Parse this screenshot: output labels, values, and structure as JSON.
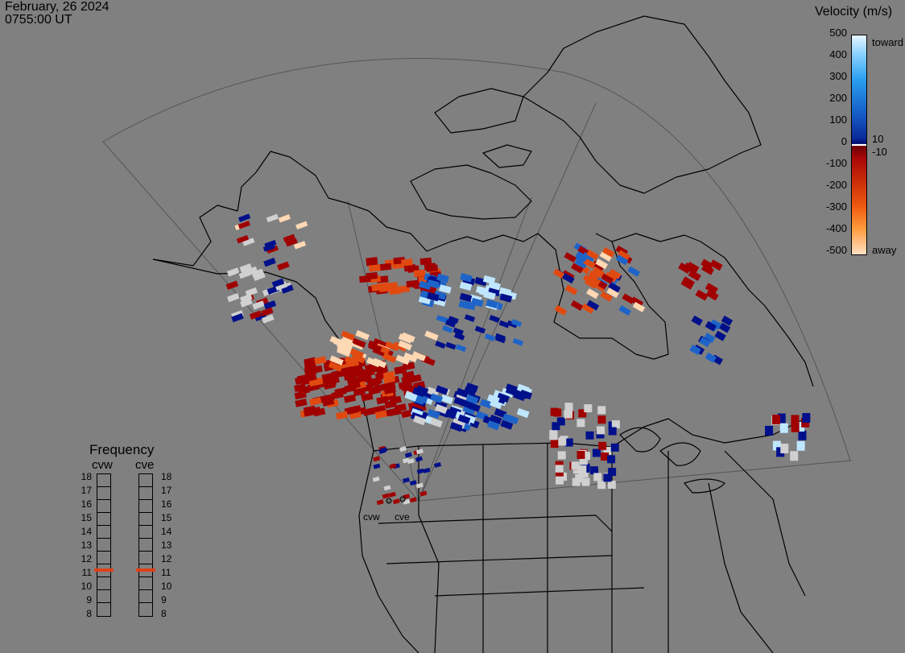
{
  "header": {
    "date": "February, 26 2024",
    "time": "0755:00 UT"
  },
  "colorbar": {
    "title": "Velocity (m/s)",
    "ticks": [
      "500",
      "400",
      "300",
      "200",
      "100",
      "0",
      "-100",
      "-200",
      "-300",
      "-400",
      "-500"
    ],
    "side_labels": {
      "toward": "toward",
      "plus10": "10",
      "minus10": "-10",
      "away": "away"
    }
  },
  "frequency": {
    "title": "Frequency",
    "radars": [
      "cvw",
      "cve"
    ],
    "labels": [
      "18",
      "17",
      "16",
      "15",
      "14",
      "13",
      "12",
      "11",
      "10",
      "9",
      "8"
    ],
    "active": {
      "cvw": "11",
      "cve": "11"
    }
  },
  "radar_sites": [
    "cvw",
    "cve"
  ],
  "colors": {
    "background": "#808080",
    "coastline": "#000000",
    "toward_strong": "#bfe6ff",
    "toward": "#1e64c8",
    "toward_low": "#00108a",
    "away_low": "#a00000",
    "away": "#e04a10",
    "away_strong": "#ffd8b4",
    "low_velocity": "#d0d0d0",
    "frequency_marker": "#e0401a"
  }
}
